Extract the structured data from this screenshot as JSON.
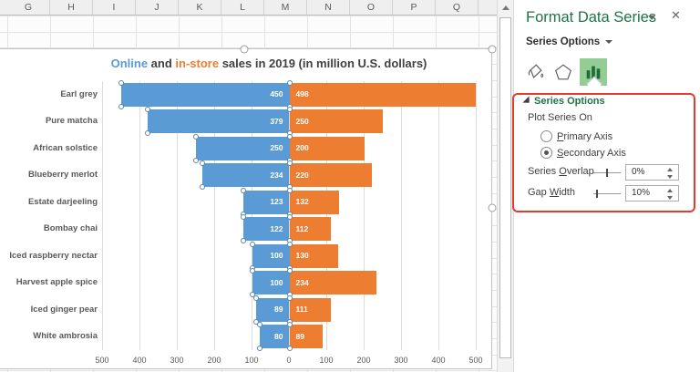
{
  "spreadsheet": {
    "column_headers": [
      "G",
      "H",
      "I",
      "J",
      "K",
      "L",
      "M",
      "N",
      "O",
      "P",
      "Q"
    ]
  },
  "chart_data": {
    "type": "bar",
    "variant": "diverging-horizontal",
    "title": "Online and in-store sales in 2019 (in million U.S. dollars)",
    "title_parts": [
      {
        "text": "Online",
        "color": "#5B9BD5"
      },
      {
        "text": " and ",
        "color": "#404040"
      },
      {
        "text": "in-store",
        "color": "#ED7D31"
      },
      {
        "text": " sales in 2019 (in million U.S. dollars)",
        "color": "#404040"
      }
    ],
    "categories": [
      "Earl grey",
      "Pure matcha",
      "African solstice",
      "Blueberry merlot",
      "Estate darjeeling",
      "Bombay chai",
      "Iced raspberry nectar",
      "Harvest apple spice",
      "Iced ginger pear",
      "White ambrosia"
    ],
    "series": [
      {
        "name": "Online",
        "color": "#5B9BD5",
        "direction": "left",
        "values": [
          450,
          379,
          250,
          234,
          123,
          122,
          100,
          100,
          89,
          80
        ]
      },
      {
        "name": "in-store",
        "color": "#ED7D31",
        "direction": "right",
        "values": [
          498,
          250,
          200,
          220,
          132,
          112,
          130,
          234,
          111,
          89
        ]
      }
    ],
    "x_axis": {
      "tick_labels": [
        "500",
        "400",
        "300",
        "200",
        "100",
        "0",
        "100",
        "200",
        "300",
        "400",
        "500"
      ],
      "max_each_side": 500,
      "gridlines": true
    },
    "data_labels": {
      "position": "inside-end",
      "color": "#FFFFFF"
    },
    "selected_series": "Online"
  },
  "pane": {
    "title": "Format Data Series",
    "section_selector": "Series Options",
    "tabs": [
      {
        "name": "Fill & Line",
        "icon": "paint-bucket",
        "selected": false
      },
      {
        "name": "Effects",
        "icon": "pentagon",
        "selected": false
      },
      {
        "name": "Series Options",
        "icon": "bar-chart",
        "selected": true
      }
    ],
    "series_options": {
      "header": "Series Options",
      "plot_series_on_label": "Plot Series On",
      "radios": [
        {
          "text": "Primary Axis",
          "key": 0,
          "selected": false
        },
        {
          "text": "Secondary Axis",
          "key": 0,
          "selected": true
        }
      ],
      "controls": [
        {
          "text": "Series Overlap",
          "key": 7,
          "value": "0%"
        },
        {
          "text": "Gap Width",
          "key": 4,
          "value": "10%"
        }
      ]
    },
    "annotation_color": "#E23B2F"
  },
  "colors": {
    "online_blue": "#5B9BD5",
    "in_store_orange": "#ED7D31",
    "pane_green": "#217346",
    "selected_tab_bg": "#94CC96"
  }
}
